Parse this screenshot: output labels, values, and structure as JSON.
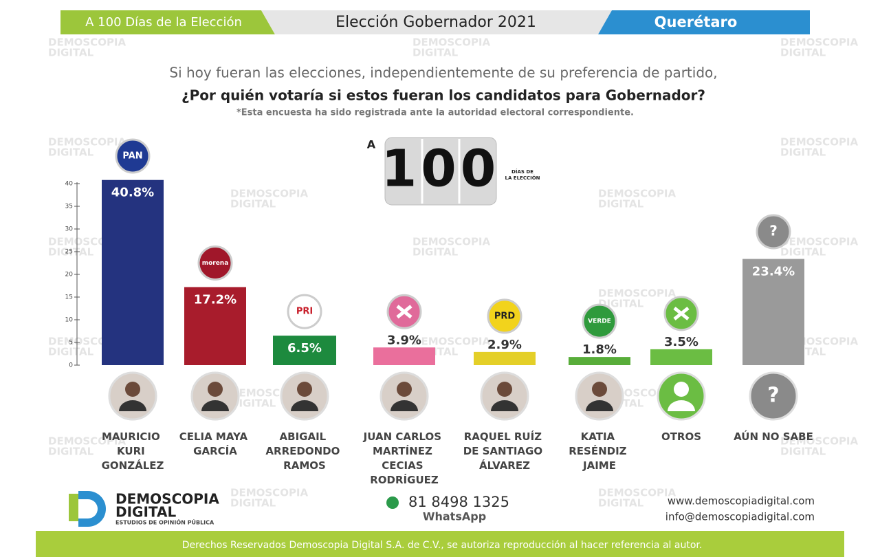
{
  "header": {
    "left": "A 100 Días de la Elección",
    "center": "Elección Gobernador 2021",
    "right": "Querétaro"
  },
  "question": {
    "line1": "Si hoy fueran las elecciones, independientemente de su preferencia de partido,",
    "line2": "¿Por quién votaría si estos fueran los candidatos para Gobernador?",
    "note": "*Esta encuesta ha sido registrada ante la autoridad electoral correspondiente."
  },
  "countdown": {
    "prefix": "A",
    "number": "100",
    "caption1": "DÍAS DE",
    "caption2": "LA ELECCIÓN"
  },
  "chart_data": {
    "type": "bar",
    "categories": [
      "MAURICIO KURI GONZÁLEZ",
      "CELIA MAYA GARCÍA",
      "ABIGAIL ARREDONDO RAMOS",
      "JUAN CARLOS MARTÍNEZ CECIAS RODRÍGUEZ",
      "RAQUEL RUÍZ DE SANTIAGO ÁLVAREZ",
      "KATIA RESÉNDIZ JAIME",
      "OTROS",
      "AÚN NO SABE"
    ],
    "values": [
      40.8,
      17.2,
      6.5,
      3.9,
      2.9,
      1.8,
      3.5,
      23.4
    ],
    "value_labels": [
      "40.8%",
      "17.2%",
      "6.5%",
      "3.9%",
      "2.9%",
      "1.8%",
      "3.5%",
      "23.4%"
    ],
    "colors": [
      "#24337f",
      "#a81c2c",
      "#1d8a3e",
      "#ea6f9c",
      "#e4cf28",
      "#58ad3a",
      "#6bbd43",
      "#9a9a9a"
    ],
    "logos": [
      "PAN",
      "morena",
      "PRI",
      null,
      "PRD",
      "VERDE",
      null,
      "?"
    ],
    "logo_colors": [
      "#1f3a93",
      "#a0172a",
      "#ffffff",
      "#e06a9a",
      "#f2d31c",
      "#2f9a3c",
      "#6bbd43",
      "#8a8a8a"
    ],
    "ylim": [
      0,
      40
    ],
    "yticks": [
      0,
      5,
      10,
      15,
      20,
      25,
      30,
      35,
      40
    ]
  },
  "footer": {
    "brand1": "DEMOSCOPIA",
    "brand2": "DIGITAL",
    "brand3": "ESTUDIOS DE OPINIÓN PÚBLICA",
    "phone": "81 8498 1325",
    "whatsapp": "WhatsApp",
    "web": "www.demoscopiadigital.com",
    "email": "info@demoscopiadigital.com",
    "rights": "Derechos Reservados Demoscopia Digital S.A. de C.V., se autoriza reproducción al hacer referencia al autor."
  }
}
